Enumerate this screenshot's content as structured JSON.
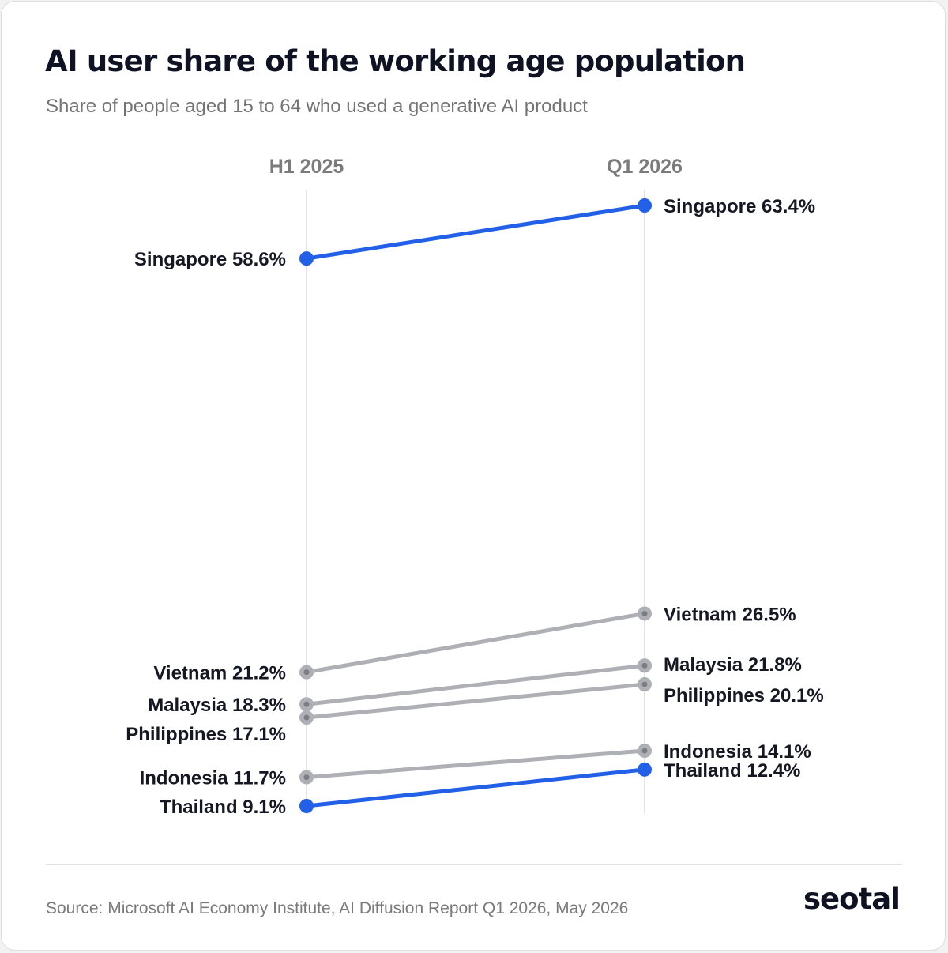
{
  "header": {
    "title": "AI user share of the working age population",
    "subtitle": "Share of people aged 15 to 64 who used a generative AI product"
  },
  "chart_data": {
    "type": "line",
    "subtype": "slope",
    "x": [
      "H1 2025",
      "Q1 2026"
    ],
    "series": [
      {
        "name": "Singapore",
        "values": [
          58.6,
          63.4
        ],
        "labels": [
          "Singapore 58.6%",
          "Singapore 63.4%"
        ],
        "highlight": true
      },
      {
        "name": "Vietnam",
        "values": [
          21.2,
          26.5
        ],
        "labels": [
          "Vietnam 21.2%",
          "Vietnam 26.5%"
        ],
        "highlight": false
      },
      {
        "name": "Malaysia",
        "values": [
          18.3,
          21.8
        ],
        "labels": [
          "Malaysia 18.3%",
          "Malaysia 21.8%"
        ],
        "highlight": false
      },
      {
        "name": "Philippines",
        "values": [
          17.1,
          20.1
        ],
        "labels": [
          "Philippines 17.1%",
          "Philippines 20.1%"
        ],
        "highlight": false
      },
      {
        "name": "Indonesia",
        "values": [
          11.7,
          14.1
        ],
        "labels": [
          "Indonesia 11.7%",
          "Indonesia 14.1%"
        ],
        "highlight": false
      },
      {
        "name": "Thailand",
        "values": [
          9.1,
          12.4
        ],
        "labels": [
          "Thailand 9.1%",
          "Thailand 12.4%"
        ],
        "highlight": true
      }
    ],
    "colors": {
      "highlight": "#2260e8",
      "muted": "#aeb0b5",
      "axis": "#e3e3e3"
    }
  },
  "footer": {
    "source": "Source: Microsoft AI Economy Institute, AI Diffusion Report Q1 2026, May 2026",
    "logo": "seotal"
  }
}
